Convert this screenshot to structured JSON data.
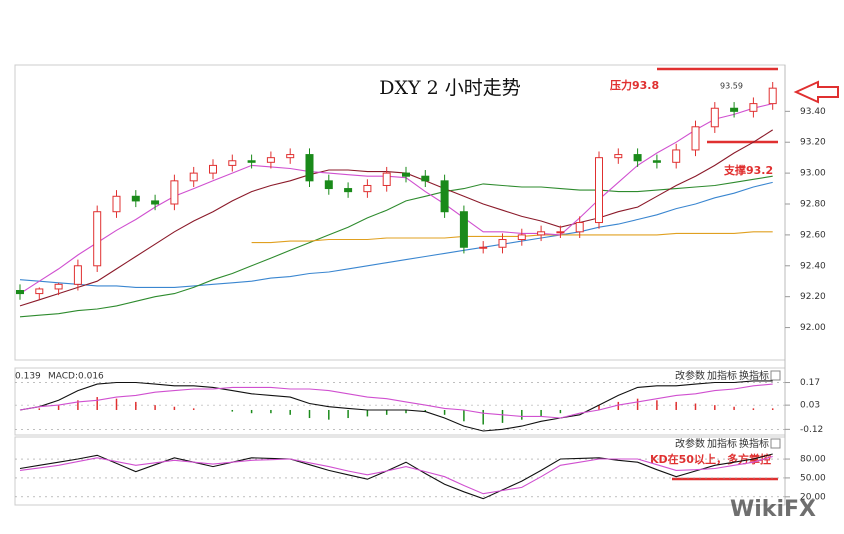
{
  "watermark": "WikiFX",
  "chart_data": [
    {
      "type": "candlestick",
      "title": "DXY 2 小时走势",
      "annotations": [
        "压力93.8",
        "支撑93.2",
        "93.59"
      ],
      "up_color": "#e03030",
      "down_color": "#1a8a1a",
      "ylim": [
        91.79,
        93.7
      ],
      "yticks": [
        {
          "value": 93.4,
          "label": "93.40"
        },
        {
          "value": 93.2,
          "label": "93.20"
        },
        {
          "value": 93.0,
          "label": "93.00"
        },
        {
          "value": 92.8,
          "label": "92.80"
        },
        {
          "value": 92.6,
          "label": "92.60"
        },
        {
          "value": 92.4,
          "label": "92.40"
        },
        {
          "value": 92.2,
          "label": "92.20"
        },
        {
          "value": 92.0,
          "label": "92.00"
        }
      ],
      "open": [
        92.24,
        92.22,
        92.25,
        92.28,
        92.4,
        92.75,
        92.85,
        92.82,
        92.8,
        92.95,
        93.0,
        93.05,
        93.08,
        93.07,
        93.1,
        93.12,
        92.95,
        92.9,
        92.88,
        92.92,
        93.0,
        92.98,
        92.95,
        92.75,
        92.52,
        92.52,
        92.57,
        92.6,
        92.62,
        92.62,
        92.68,
        93.1,
        93.12,
        93.08,
        93.07,
        93.15,
        93.3,
        93.42,
        93.4,
        93.45
      ],
      "high": [
        92.28,
        92.26,
        92.29,
        92.44,
        92.79,
        92.89,
        92.89,
        92.86,
        92.99,
        93.04,
        93.09,
        93.12,
        93.12,
        93.14,
        93.16,
        93.16,
        92.99,
        92.94,
        92.96,
        93.04,
        93.04,
        93.02,
        92.99,
        92.79,
        92.56,
        92.61,
        92.64,
        92.66,
        92.66,
        92.72,
        93.14,
        93.16,
        93.16,
        93.12,
        93.19,
        93.34,
        93.46,
        93.46,
        93.49,
        93.59
      ],
      "low": [
        92.18,
        92.18,
        92.21,
        92.24,
        92.36,
        92.71,
        92.78,
        92.76,
        92.76,
        92.91,
        92.96,
        93.01,
        93.03,
        93.03,
        93.06,
        92.91,
        92.86,
        92.84,
        92.84,
        92.88,
        92.94,
        92.91,
        92.71,
        92.48,
        92.48,
        92.48,
        92.53,
        92.56,
        92.58,
        92.58,
        92.64,
        93.06,
        93.04,
        93.03,
        93.03,
        93.11,
        93.26,
        93.36,
        93.36,
        93.41
      ],
      "close": [
        92.22,
        92.25,
        92.28,
        92.4,
        92.75,
        92.85,
        92.82,
        92.8,
        92.95,
        93.0,
        93.05,
        93.08,
        93.07,
        93.1,
        93.12,
        92.95,
        92.9,
        92.88,
        92.92,
        93.0,
        92.98,
        92.95,
        92.75,
        92.52,
        92.52,
        92.57,
        92.6,
        92.62,
        92.62,
        92.68,
        93.1,
        93.12,
        93.08,
        93.07,
        93.15,
        93.3,
        93.42,
        93.4,
        93.45,
        93.55
      ],
      "lines": [
        {
          "color": "#3a86d0",
          "values": [
            92.31,
            92.3,
            92.29,
            92.28,
            92.27,
            92.27,
            92.26,
            92.26,
            92.26,
            92.27,
            92.28,
            92.29,
            92.3,
            92.32,
            92.33,
            92.35,
            92.36,
            92.38,
            92.4,
            92.42,
            92.44,
            92.46,
            92.48,
            92.5,
            92.52,
            92.54,
            92.56,
            92.58,
            92.6,
            92.62,
            92.65,
            92.67,
            92.7,
            92.73,
            92.77,
            92.8,
            92.84,
            92.87,
            92.91,
            92.94
          ]
        },
        {
          "color": "#2e8b2e",
          "values": [
            92.07,
            92.08,
            92.09,
            92.11,
            92.12,
            92.14,
            92.17,
            92.2,
            92.22,
            92.26,
            92.31,
            92.35,
            92.4,
            92.45,
            92.5,
            92.55,
            92.6,
            92.65,
            92.71,
            92.76,
            92.82,
            92.85,
            92.88,
            92.9,
            92.93,
            92.92,
            92.91,
            92.91,
            92.9,
            92.89,
            92.89,
            92.88,
            92.88,
            92.89,
            92.9,
            92.91,
            92.92,
            92.94,
            92.96,
            92.98
          ]
        },
        {
          "color": "#e0a020",
          "values": [
            null,
            null,
            null,
            null,
            null,
            null,
            null,
            null,
            null,
            null,
            null,
            null,
            92.55,
            92.55,
            92.56,
            92.56,
            92.57,
            92.57,
            92.57,
            92.58,
            92.58,
            92.58,
            92.58,
            92.59,
            92.59,
            92.59,
            92.59,
            92.6,
            92.6,
            92.6,
            92.6,
            92.6,
            92.6,
            92.6,
            92.61,
            92.61,
            92.61,
            92.61,
            92.62,
            92.62
          ]
        },
        {
          "color": "#8b1a2a",
          "values": [
            92.14,
            92.18,
            92.22,
            92.26,
            92.3,
            92.38,
            92.46,
            92.54,
            92.62,
            92.69,
            92.75,
            92.82,
            92.88,
            92.92,
            92.95,
            92.99,
            93.02,
            93.02,
            93.01,
            93.01,
            93.0,
            92.95,
            92.9,
            92.85,
            92.8,
            92.76,
            92.72,
            92.69,
            92.65,
            92.68,
            92.71,
            92.75,
            92.78,
            92.85,
            92.92,
            92.98,
            93.05,
            93.13,
            93.2,
            93.28
          ]
        },
        {
          "color": "#d050d0",
          "values": [
            92.22,
            92.3,
            92.38,
            92.47,
            92.55,
            92.63,
            92.7,
            92.78,
            92.85,
            92.9,
            92.95,
            93.0,
            93.05,
            93.04,
            93.03,
            93.01,
            93.0,
            92.99,
            92.98,
            92.98,
            92.97,
            92.88,
            92.8,
            92.71,
            92.62,
            92.62,
            92.61,
            92.61,
            92.6,
            92.71,
            92.83,
            92.94,
            93.05,
            93.13,
            93.2,
            93.28,
            93.35,
            93.38,
            93.42,
            93.45
          ]
        }
      ]
    },
    {
      "type": "macd",
      "header": [
        "0.139",
        "MACD:0.016"
      ],
      "toolbar": [
        "改参数",
        "加指标",
        "换指标"
      ],
      "ylim": [
        -0.155,
        0.26
      ],
      "yticks": [
        0.17,
        0.03,
        -0.12
      ],
      "up_color": "#e03030",
      "down_color": "#1a8a1a",
      "histogram": [
        0.0,
        0.01,
        0.03,
        0.06,
        0.08,
        0.07,
        0.05,
        0.03,
        0.02,
        0.01,
        0.0,
        -0.01,
        -0.02,
        -0.02,
        -0.03,
        -0.05,
        -0.06,
        -0.05,
        -0.04,
        -0.03,
        -0.02,
        -0.01,
        -0.03,
        -0.07,
        -0.09,
        -0.08,
        -0.06,
        -0.04,
        -0.02,
        0.0,
        0.03,
        0.05,
        0.07,
        0.06,
        0.05,
        0.04,
        0.03,
        0.02,
        0.01,
        0.01
      ],
      "lines": [
        {
          "color": "#111111",
          "values": [
            0.0,
            0.02,
            0.06,
            0.12,
            0.16,
            0.17,
            0.17,
            0.16,
            0.15,
            0.15,
            0.14,
            0.12,
            0.1,
            0.09,
            0.08,
            0.04,
            0.02,
            0.01,
            0.0,
            0.0,
            0.0,
            -0.01,
            -0.05,
            -0.1,
            -0.13,
            -0.12,
            -0.1,
            -0.07,
            -0.05,
            -0.03,
            0.03,
            0.09,
            0.14,
            0.15,
            0.15,
            0.16,
            0.17,
            0.17,
            0.18,
            0.18
          ]
        },
        {
          "color": "#d050d0",
          "values": [
            0.0,
            0.02,
            0.03,
            0.05,
            0.06,
            0.08,
            0.09,
            0.11,
            0.12,
            0.13,
            0.13,
            0.14,
            0.14,
            0.14,
            0.13,
            0.13,
            0.12,
            0.1,
            0.08,
            0.07,
            0.05,
            0.03,
            0.01,
            0.0,
            -0.02,
            -0.03,
            -0.04,
            -0.04,
            -0.05,
            -0.02,
            0.0,
            0.03,
            0.05,
            0.07,
            0.09,
            0.1,
            0.12,
            0.13,
            0.15,
            0.16
          ]
        }
      ]
    },
    {
      "type": "line",
      "toolbar": [
        "改参数",
        "加指标",
        "换指标"
      ],
      "annotations": [
        "KD在50以上，多方掌控"
      ],
      "ylim": [
        7,
        115
      ],
      "yticks": [
        {
          "value": 80,
          "label": "80.00"
        },
        {
          "value": 50,
          "label": "50.00"
        },
        {
          "value": 20,
          "label": "20.00"
        }
      ],
      "lines": [
        {
          "color": "#111111",
          "values": [
            65,
            70,
            75,
            80,
            86,
            73,
            60,
            71,
            82,
            75,
            68,
            75,
            82,
            81,
            80,
            71,
            62,
            55,
            48,
            61,
            75,
            57,
            40,
            28,
            17,
            31,
            45,
            62,
            80,
            81,
            82,
            78,
            75,
            63,
            52,
            61,
            70,
            75,
            80,
            88
          ]
        },
        {
          "color": "#d050d0",
          "values": [
            62,
            66,
            70,
            76,
            82,
            76,
            70,
            74,
            78,
            75,
            72,
            75,
            78,
            79,
            80,
            74,
            68,
            61,
            55,
            61,
            68,
            60,
            52,
            38,
            25,
            30,
            35,
            52,
            70,
            75,
            80,
            80,
            80,
            71,
            62,
            63,
            65,
            70,
            75,
            84
          ]
        }
      ]
    }
  ]
}
